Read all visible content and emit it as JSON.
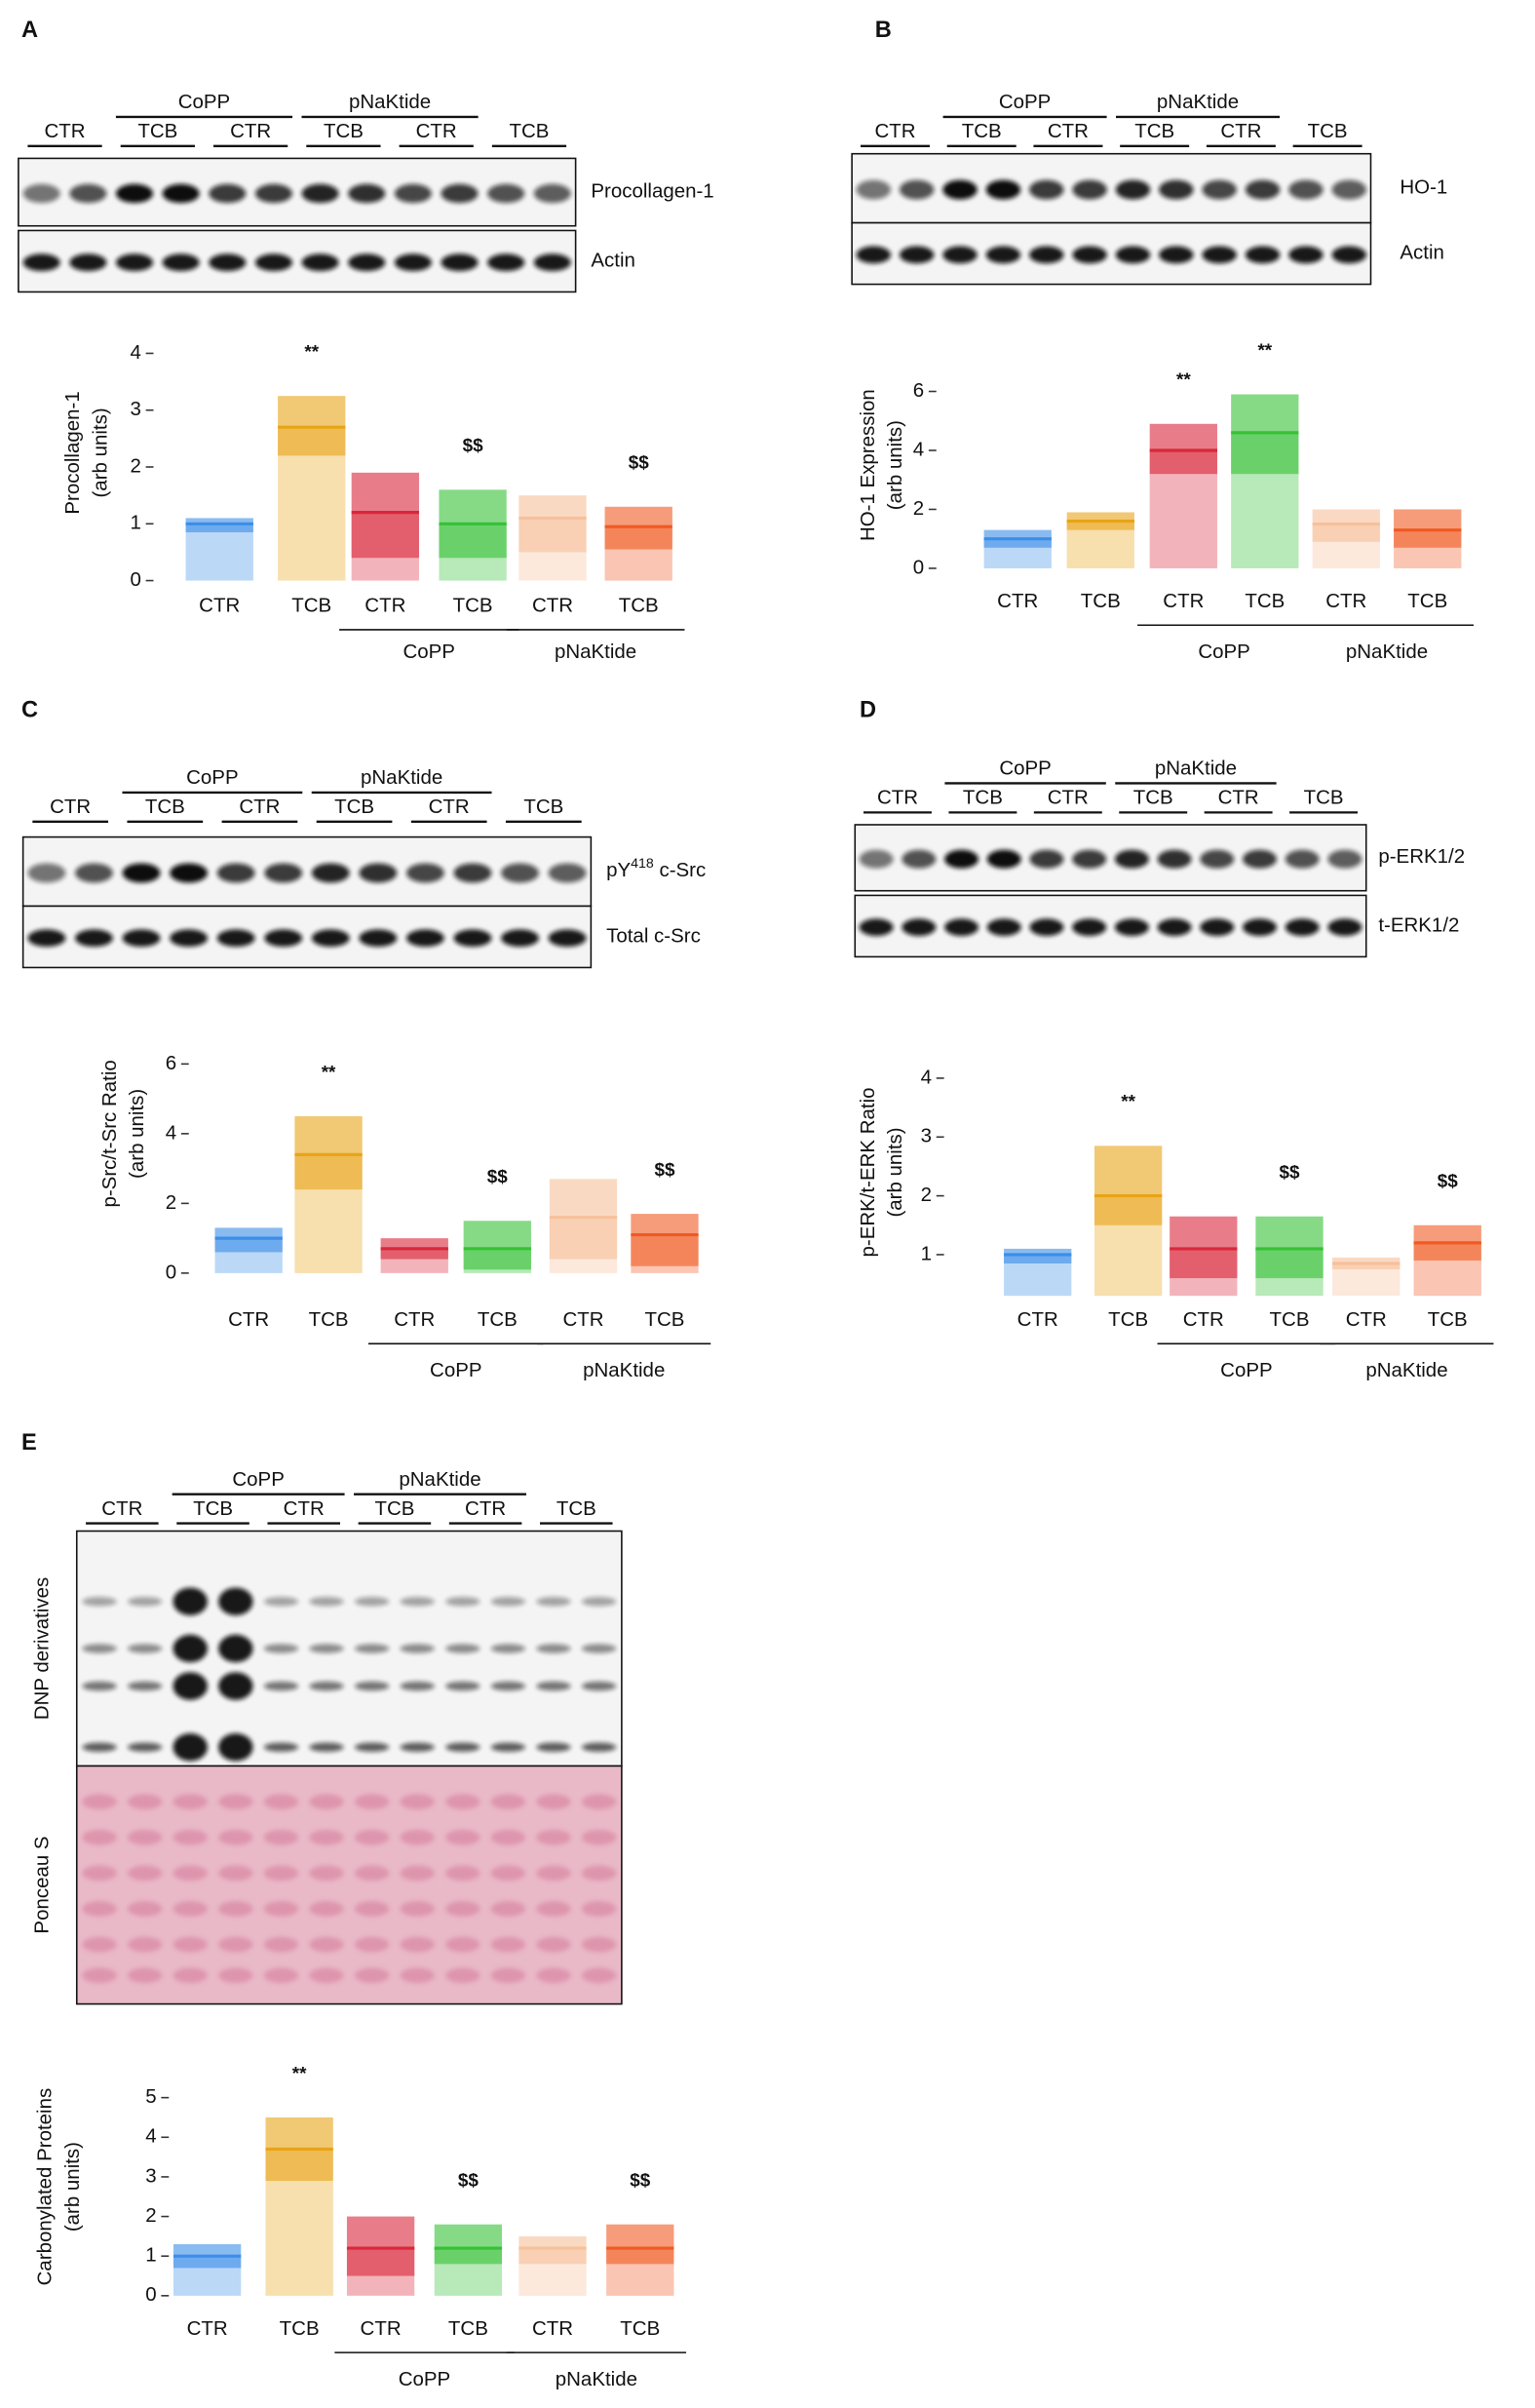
{
  "chart_data": [
    {
      "type": "bar",
      "panel_label": "A",
      "ylabel": [
        "Procollagen-1",
        "(arb units)"
      ],
      "categories": [
        "CTR",
        "TCB",
        "CTR",
        "TCB",
        "CTR",
        "TCB"
      ],
      "groups": [
        "CoPP",
        "pNaKtide"
      ],
      "values": [
        1.0,
        2.7,
        1.2,
        1.0,
        1.1,
        0.95
      ],
      "ci_low": [
        0.85,
        2.2,
        0.4,
        0.4,
        0.5,
        0.55
      ],
      "ci_high": [
        1.1,
        3.25,
        1.9,
        1.6,
        1.5,
        1.3
      ],
      "colors": [
        "#3b8ee8",
        "#e8a417",
        "#d9273a",
        "#35c135",
        "#f7c09a",
        "#f05a22"
      ],
      "annotations": [
        null,
        "**",
        null,
        "$$",
        null,
        "$$"
      ],
      "ylim": [
        0,
        4.5
      ],
      "yticks": [
        0,
        1,
        2,
        3,
        4
      ],
      "blot_lanes": [
        "CTR",
        "TCB",
        "CTR",
        "TCB",
        "CTR",
        "TCB"
      ],
      "blot_groups": [
        "CoPP",
        "pNaKtide"
      ],
      "blot_rows": [
        "Procollagen-1",
        "Actin"
      ]
    },
    {
      "type": "bar",
      "panel_label": "B",
      "ylabel": [
        "HO-1 Expression",
        "(arb units)"
      ],
      "categories": [
        "CTR",
        "TCB",
        "CTR",
        "TCB",
        "CTR",
        "TCB"
      ],
      "groups": [
        "CoPP",
        "pNaKtide"
      ],
      "values": [
        1.0,
        1.6,
        4.0,
        4.6,
        1.5,
        1.3
      ],
      "ci_low": [
        0.7,
        1.3,
        3.2,
        3.2,
        0.9,
        0.7
      ],
      "ci_high": [
        1.3,
        1.9,
        4.9,
        5.9,
        2.0,
        2.0
      ],
      "colors": [
        "#3b8ee8",
        "#e8a417",
        "#d9273a",
        "#35c135",
        "#f7c09a",
        "#f05a22"
      ],
      "annotations": [
        null,
        null,
        "**",
        "**",
        null,
        null
      ],
      "ylim": [
        0,
        7
      ],
      "yticks": [
        0,
        2,
        4,
        6
      ],
      "blot_lanes": [
        "CTR",
        "TCB",
        "CTR",
        "TCB",
        "CTR",
        "TCB"
      ],
      "blot_groups": [
        "CoPP",
        "pNaKtide"
      ],
      "blot_rows": [
        "HO-1",
        "Actin"
      ]
    },
    {
      "type": "bar",
      "panel_label": "C",
      "ylabel": [
        "p-Src/t-Src Ratio",
        "(arb units)"
      ],
      "categories": [
        "CTR",
        "TCB",
        "CTR",
        "TCB",
        "CTR",
        "TCB"
      ],
      "groups": [
        "CoPP",
        "pNaKtide"
      ],
      "values": [
        1.0,
        3.4,
        0.7,
        0.7,
        1.6,
        1.1
      ],
      "ci_low": [
        0.6,
        2.4,
        0.4,
        0.1,
        0.4,
        0.2
      ],
      "ci_high": [
        1.3,
        4.5,
        1.0,
        1.5,
        2.7,
        1.7
      ],
      "colors": [
        "#3b8ee8",
        "#e8a417",
        "#d9273a",
        "#35c135",
        "#f7c09a",
        "#f05a22"
      ],
      "annotations": [
        null,
        "**",
        null,
        "$$",
        null,
        "$$"
      ],
      "ylim": [
        0,
        8
      ],
      "yticks": [
        0,
        2,
        4,
        6
      ],
      "blot_lanes": [
        "CTR",
        "TCB",
        "CTR",
        "TCB",
        "CTR",
        "TCB"
      ],
      "blot_groups": [
        "CoPP",
        "pNaKtide"
      ],
      "blot_rows": [
        {
          "text": "pY",
          "sup": "418",
          "tail": " c-Src"
        },
        "Total c-Src"
      ]
    },
    {
      "type": "bar",
      "panel_label": "D",
      "ylabel": [
        "p-ERK/t-ERK Ratio",
        "(arb units)"
      ],
      "categories": [
        "CTR",
        "TCB",
        "CTR",
        "TCB",
        "CTR",
        "TCB"
      ],
      "groups": [
        "CoPP",
        "pNaKtide"
      ],
      "values": [
        1.0,
        2.0,
        1.1,
        1.1,
        0.85,
        1.2
      ],
      "ci_low": [
        0.85,
        1.5,
        0.6,
        0.6,
        0.75,
        0.9
      ],
      "ci_high": [
        1.1,
        2.85,
        1.65,
        1.65,
        0.95,
        1.5
      ],
      "colors": [
        "#3b8ee8",
        "#e8a417",
        "#d9273a",
        "#35c135",
        "#f7c09a",
        "#f05a22"
      ],
      "annotations": [
        null,
        "**",
        null,
        "$$",
        null,
        "$$"
      ],
      "ylim": [
        0.3,
        4.5
      ],
      "yticks": [
        1,
        2,
        3,
        4
      ],
      "blot_lanes": [
        "CTR",
        "TCB",
        "CTR",
        "TCB",
        "CTR",
        "TCB"
      ],
      "blot_groups": [
        "CoPP",
        "pNaKtide"
      ],
      "blot_rows": [
        "p-ERK1/2",
        "t-ERK1/2"
      ]
    },
    {
      "type": "bar",
      "panel_label": "E",
      "ylabel": [
        "Carbonylated Proteins",
        "(arb units)"
      ],
      "categories": [
        "CTR",
        "TCB",
        "CTR",
        "TCB",
        "CTR",
        "TCB"
      ],
      "groups": [
        "CoPP",
        "pNaKtide"
      ],
      "values": [
        1.0,
        3.7,
        1.2,
        1.2,
        1.2,
        1.2
      ],
      "ci_low": [
        0.7,
        2.9,
        0.5,
        0.8,
        0.8,
        0.8
      ],
      "ci_high": [
        1.3,
        4.5,
        2.0,
        1.8,
        1.5,
        1.8
      ],
      "colors": [
        "#3b8ee8",
        "#e8a417",
        "#d9273a",
        "#35c135",
        "#f7c09a",
        "#f05a22"
      ],
      "annotations": [
        null,
        "**",
        null,
        "$$",
        null,
        "$$"
      ],
      "ylim": [
        0,
        5.5
      ],
      "yticks": [
        0,
        1,
        2,
        3,
        4,
        5
      ],
      "blot_lanes": [
        "CTR",
        "TCB",
        "CTR",
        "TCB",
        "CTR",
        "TCB"
      ],
      "blot_groups": [
        "CoPP",
        "pNaKtide"
      ],
      "blot_rows": [
        "DNP derivatives",
        "Ponceau S"
      ]
    }
  ]
}
